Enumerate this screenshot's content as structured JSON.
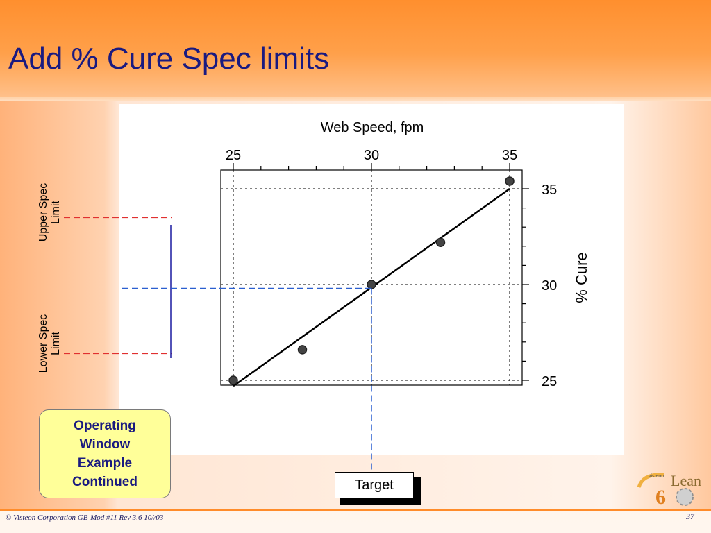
{
  "slide": {
    "title": "Add % Cure Spec limits",
    "callout_lines": [
      "Operating",
      "Window",
      "Example",
      "Continued"
    ],
    "target_label": "Target",
    "upper_spec_lines": [
      "Upper Spec",
      "Limit"
    ],
    "lower_spec_lines": [
      "Lower Spec",
      "Limit"
    ],
    "footer_left": "© Visteon Corporation  GB-Mod #11 Rev 3.6  10//03",
    "page_number": "37",
    "logo": {
      "small_text": "visteon",
      "numeral": "6",
      "word": "Lean",
      "icon": "gear-icon"
    }
  },
  "colors": {
    "title": "#1a1a80",
    "spec_lines": "#e03030",
    "target_lines": "#2a5fd0",
    "operating_window": "#1a1aa0",
    "accent": "#ff8c2a",
    "callout_fill": "#ffff99"
  },
  "chart_data": {
    "type": "scatter",
    "xlabel": "Web Speed, fpm",
    "ylabel": "% Cure",
    "xlim": [
      25,
      35
    ],
    "ylim": [
      25,
      35
    ],
    "x_ticks": [
      25,
      30,
      35
    ],
    "y_ticks": [
      25,
      30,
      35
    ],
    "x_axis_position": "top",
    "y_axis_position": "right",
    "points": [
      {
        "x": 25.0,
        "y": 25.0
      },
      {
        "x": 27.5,
        "y": 26.6
      },
      {
        "x": 30.0,
        "y": 30.0
      },
      {
        "x": 32.5,
        "y": 32.2
      },
      {
        "x": 35.0,
        "y": 35.4
      }
    ],
    "fit_line": {
      "x": [
        25,
        35
      ],
      "y": [
        24.7,
        35.0
      ]
    },
    "reference_lines": {
      "x": [
        25,
        30,
        35
      ],
      "y": [
        25,
        30,
        35
      ]
    },
    "upper_spec_limit": 33.5,
    "lower_spec_limit": 26.4,
    "target_x": 30,
    "grid": false
  }
}
